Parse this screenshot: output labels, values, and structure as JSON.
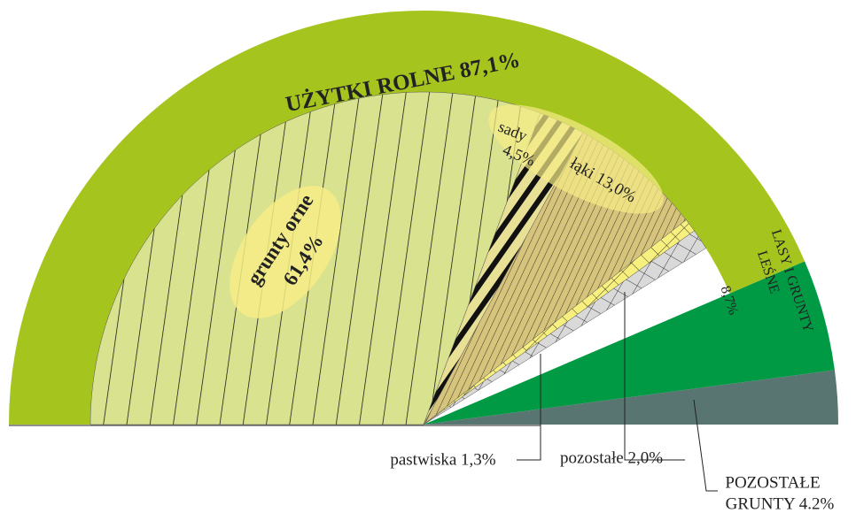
{
  "chart_data": {
    "type": "semi-pie",
    "outer": {
      "values": [
        87.1,
        8.7,
        4.2
      ],
      "labels": [
        [
          "UŻYTKI ROLNE 87,1%"
        ],
        [
          "LASY I GRUNTY",
          "LEŚNE",
          "8,7%"
        ],
        [
          "POZOSTAŁE",
          "GRUNTY 4.2%"
        ]
      ],
      "colors": [
        "#a6c41e",
        "#009a44",
        "#587571"
      ]
    },
    "inner": {
      "values": [
        61.4,
        4.5,
        13.0,
        1.3,
        2.0
      ],
      "labels": [
        [
          "grunty orne",
          "61,4%"
        ],
        [
          "sady",
          "4,5%"
        ],
        [
          "łąki 13,0%"
        ],
        [
          "pastwiska 1,3%"
        ],
        [
          "pozostałe 2,0%"
        ]
      ],
      "colors": [
        "#d9e38f",
        "#e8e095",
        "#d6c37c",
        "#f8f07e",
        "#d9d9d9"
      ]
    }
  }
}
